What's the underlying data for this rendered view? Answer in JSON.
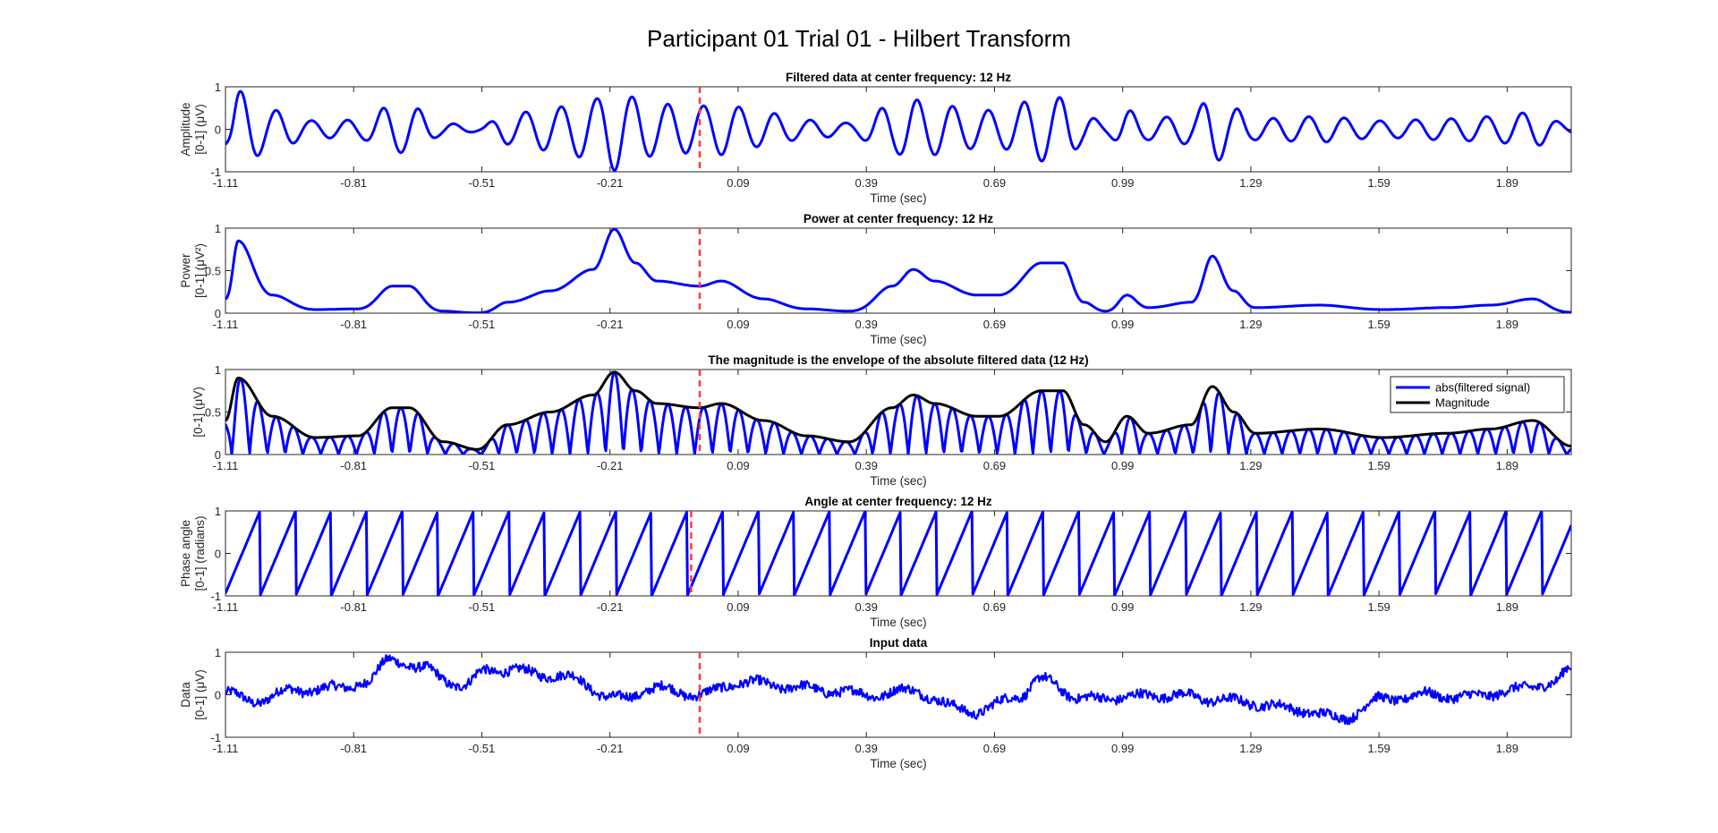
{
  "figure": {
    "title": "Participant 01 Trial 01 - Hilbert Transform"
  },
  "colors": {
    "signal": "#0000ff",
    "magnitude": "#000000",
    "marker": "#ff3b3b",
    "axes": "#262626"
  },
  "chart_data": [
    {
      "type": "line",
      "title": "Filtered data at center frequency: 12 Hz",
      "xlabel": "Time (sec)",
      "ylabel_lines": [
        "Amplitude",
        "[0-1] (μV)"
      ],
      "xlim": [
        -1.11,
        2.04
      ],
      "ylim": [
        -1,
        1
      ],
      "xticks": [
        -1.11,
        -0.81,
        -0.51,
        -0.21,
        0.09,
        0.39,
        0.69,
        0.99,
        1.29,
        1.59,
        1.89
      ],
      "yticks": [
        -1,
        0,
        1
      ],
      "vline_x": 0,
      "series": [
        {
          "kind": "oscillation",
          "frequency_hz": 12,
          "envelope_t": [
            -1.11,
            -1.08,
            -1.0,
            -0.9,
            -0.8,
            -0.72,
            -0.68,
            -0.6,
            -0.52,
            -0.45,
            -0.35,
            -0.25,
            -0.2,
            -0.15,
            -0.1,
            0.0,
            0.05,
            0.15,
            0.25,
            0.35,
            0.45,
            0.5,
            0.55,
            0.65,
            0.7,
            0.8,
            0.85,
            0.9,
            0.95,
            1.0,
            1.05,
            1.15,
            1.2,
            1.25,
            1.3,
            1.45,
            1.6,
            1.75,
            1.85,
            1.95,
            2.04
          ],
          "envelope_v": [
            0.4,
            0.9,
            0.45,
            0.2,
            0.22,
            0.55,
            0.55,
            0.15,
            0.06,
            0.35,
            0.5,
            0.7,
            0.97,
            0.75,
            0.6,
            0.55,
            0.6,
            0.4,
            0.22,
            0.15,
            0.55,
            0.7,
            0.6,
            0.45,
            0.45,
            0.75,
            0.75,
            0.35,
            0.15,
            0.45,
            0.25,
            0.35,
            0.8,
            0.5,
            0.25,
            0.3,
            0.2,
            0.25,
            0.3,
            0.4,
            0.1
          ]
        }
      ]
    },
    {
      "type": "line",
      "title": "Power at center frequency: 12 Hz",
      "xlabel": "Time (sec)",
      "ylabel_lines": [
        "Power",
        "[0-1] (μV²)"
      ],
      "xlim": [
        -1.11,
        2.04
      ],
      "ylim": [
        0,
        1
      ],
      "xticks": [
        -1.11,
        -0.81,
        -0.51,
        -0.21,
        0.09,
        0.39,
        0.69,
        0.99,
        1.29,
        1.59,
        1.89
      ],
      "yticks": [
        0,
        0.5,
        1
      ],
      "vline_x": 0,
      "series": [
        {
          "kind": "envelope_squared",
          "color_key": "signal"
        }
      ]
    },
    {
      "type": "line",
      "title": "The magnitude is the envelope of the absolute filtered data (12 Hz)",
      "xlabel": "Time (sec)",
      "ylabel_lines": [
        "[0-1] (μV)"
      ],
      "xlim": [
        -1.11,
        2.04
      ],
      "ylim": [
        0,
        1
      ],
      "xticks": [
        -1.11,
        -0.81,
        -0.51,
        -0.21,
        0.09,
        0.39,
        0.69,
        0.99,
        1.29,
        1.59,
        1.89
      ],
      "yticks": [
        0,
        0.5,
        1
      ],
      "vline_x": 0,
      "legend": {
        "position": "top-right",
        "entries": [
          "abs(filtered signal)",
          "Magnitude"
        ]
      },
      "series": [
        {
          "name": "abs(filtered signal)",
          "kind": "abs_oscillation",
          "color_key": "signal"
        },
        {
          "name": "Magnitude",
          "kind": "envelope",
          "color_key": "magnitude"
        }
      ]
    },
    {
      "type": "line",
      "title": "Angle at center frequency: 12 Hz",
      "xlabel": "Time (sec)",
      "ylabel_lines": [
        "Phase angle",
        "[0-1] (radians)"
      ],
      "xlim": [
        -1.11,
        2.04
      ],
      "ylim": [
        -1,
        1
      ],
      "xticks": [
        -1.11,
        -0.81,
        -0.51,
        -0.21,
        0.09,
        0.39,
        0.69,
        0.99,
        1.29,
        1.59,
        1.89
      ],
      "yticks": [
        -1,
        0,
        1
      ],
      "vline_x": -0.02,
      "series": [
        {
          "kind": "sawtooth",
          "frequency_hz": 12
        }
      ]
    },
    {
      "type": "line",
      "title": "Input data",
      "xlabel": "Time (sec)",
      "ylabel_lines": [
        "Data",
        "[0-1] (μV)"
      ],
      "xlim": [
        -1.11,
        2.04
      ],
      "ylim": [
        -1,
        1
      ],
      "xticks": [
        -1.11,
        -0.81,
        -0.51,
        -0.21,
        0.09,
        0.39,
        0.69,
        0.99,
        1.29,
        1.59,
        1.89
      ],
      "yticks": [
        -1,
        0,
        1
      ],
      "vline_x": 0,
      "series": [
        {
          "kind": "noisy",
          "trend_t": [
            -1.11,
            -1.05,
            -0.95,
            -0.85,
            -0.78,
            -0.72,
            -0.65,
            -0.55,
            -0.5,
            -0.42,
            -0.3,
            -0.2,
            -0.1,
            0.0,
            0.1,
            0.2,
            0.3,
            0.4,
            0.5,
            0.6,
            0.65,
            0.75,
            0.8,
            0.9,
            1.0,
            1.1,
            1.2,
            1.3,
            1.4,
            1.5,
            1.6,
            1.7,
            1.8,
            1.9,
            2.0,
            2.04
          ],
          "trend_v": [
            0.05,
            -0.15,
            0.1,
            0.15,
            0.3,
            0.85,
            0.6,
            0.2,
            0.6,
            0.55,
            0.4,
            -0.1,
            0.15,
            0.0,
            0.3,
            0.2,
            0.1,
            0.0,
            0.1,
            -0.3,
            -0.4,
            0.0,
            0.35,
            -0.1,
            -0.05,
            0.0,
            -0.1,
            -0.2,
            -0.35,
            -0.55,
            -0.1,
            0.0,
            -0.05,
            0.1,
            0.3,
            0.6
          ]
        }
      ]
    }
  ]
}
